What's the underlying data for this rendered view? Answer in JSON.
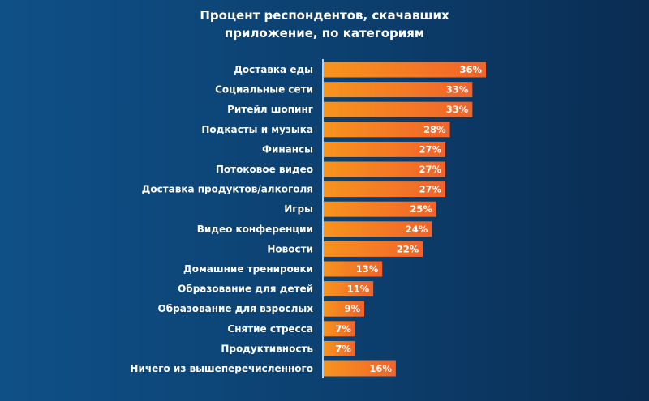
{
  "chart_data": {
    "type": "bar",
    "orientation": "horizontal",
    "title_lines": [
      "Процент респондентов, скачавших",
      "приложение, по категориям"
    ],
    "categories": [
      "Доставка еды",
      "Социальные сети",
      "Ритейл шопинг",
      "Подкасты и музыка",
      "Финансы",
      "Потоковое видео",
      "Доставка продуктов/алкоголя",
      "Игры",
      "Видео конференции",
      "Новости",
      "Домашние тренировки",
      "Образование для детей",
      "Образование для взрослых",
      "Снятие стресса",
      "Продуктивность",
      "Ничего из вышеперечисленного"
    ],
    "values": [
      36,
      33,
      33,
      28,
      27,
      27,
      27,
      25,
      24,
      22,
      13,
      11,
      9,
      7,
      7,
      16
    ],
    "value_labels": [
      "36%",
      "33%",
      "33%",
      "28%",
      "27%",
      "27%",
      "27%",
      "25%",
      "24%",
      "22%",
      "13%",
      "11%",
      "9%",
      "7%",
      "7%",
      "16%"
    ],
    "unit": "%",
    "xlabel": "",
    "ylabel": "",
    "xlim": [
      0,
      36
    ],
    "grid": false,
    "colors": {
      "bar_start": "#f7941d",
      "bar_end": "#f1632b",
      "background": "#0c3f6e"
    }
  }
}
